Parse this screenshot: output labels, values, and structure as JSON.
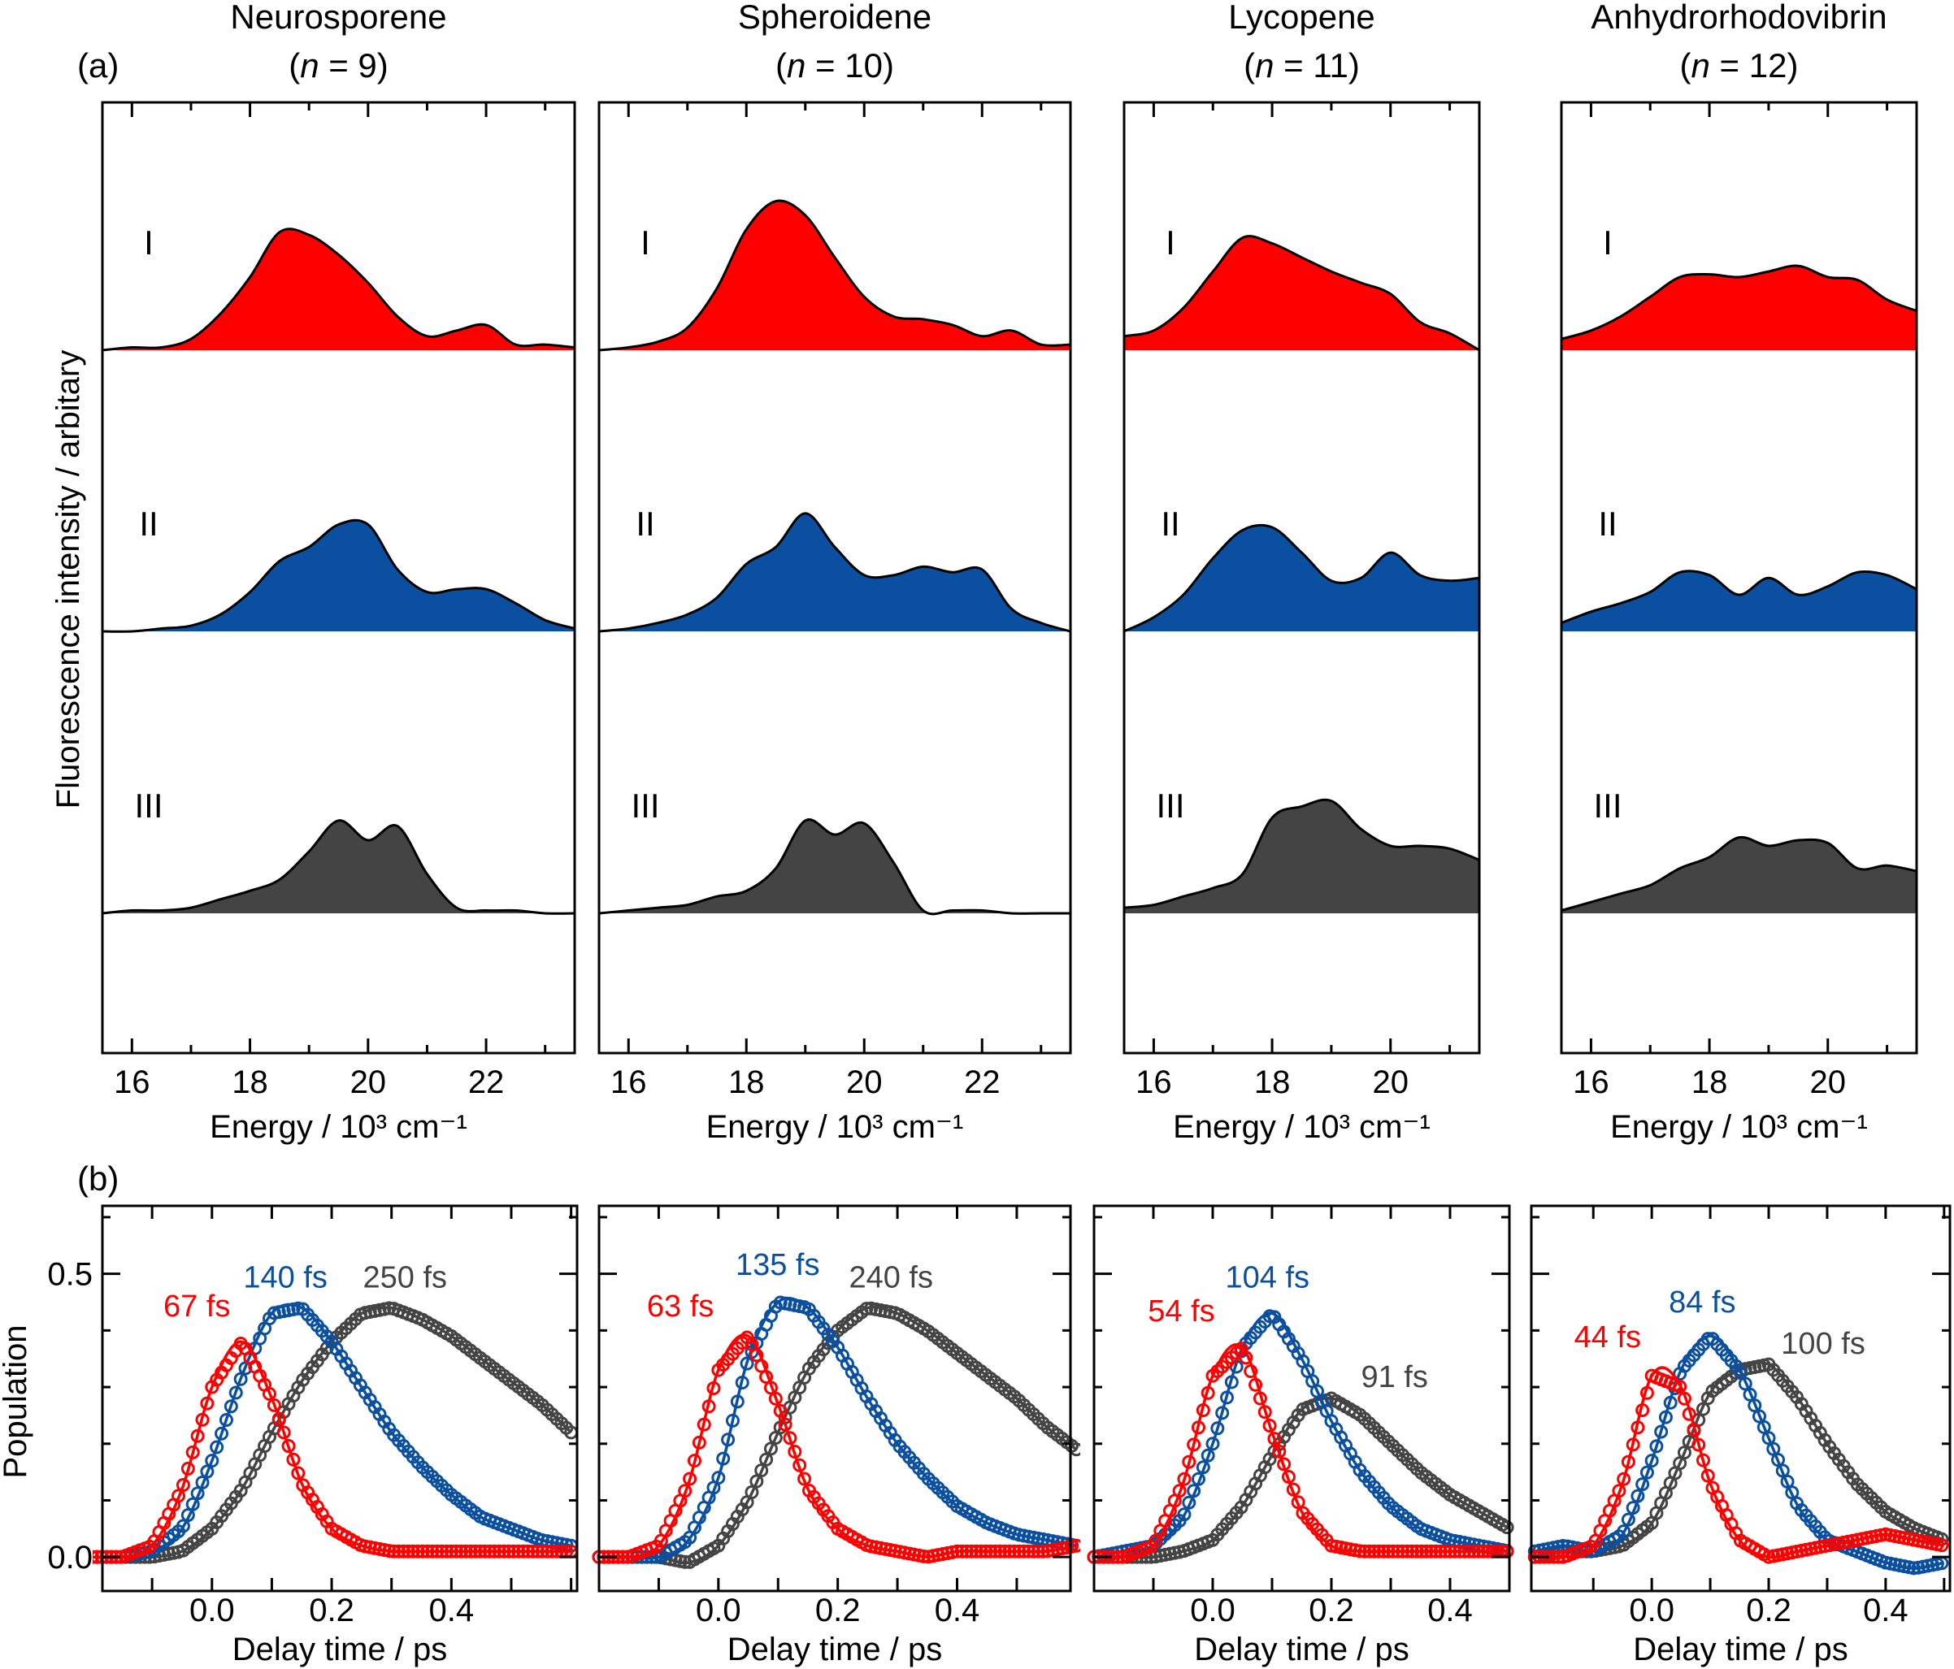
{
  "figure": {
    "panel_a_label": "(a)",
    "panel_b_label": "(b)"
  },
  "colors": {
    "I": "#ff0000",
    "II": "#0b4fa0",
    "III": "#444444",
    "axis": "#000000"
  },
  "chart_data": {
    "spectra": {
      "type": "area",
      "ylabel": "Fluorescence intensity / arbitary",
      "xlabel": "Energy / 10³ cm⁻¹",
      "panels": [
        {
          "title": "Neurosporene",
          "n_open": "(",
          "n_symbol": "n",
          "n_rest": " = 9)",
          "xlim": [
            15.5,
            23.5
          ],
          "xticks": [
            "16",
            "18",
            "20",
            "22"
          ],
          "energy": [
            15.5,
            16,
            16.5,
            17,
            17.5,
            18,
            18.5,
            19,
            19.5,
            20,
            20.5,
            21,
            21.5,
            22,
            22.5,
            23,
            23.5
          ],
          "series": [
            {
              "name": "I",
              "values": [
                0,
                0.01,
                0.01,
                0.04,
                0.13,
                0.26,
                0.42,
                0.41,
                0.34,
                0.24,
                0.12,
                0.05,
                0.07,
                0.09,
                0.02,
                0.02,
                0.01
              ]
            },
            {
              "name": "II",
              "values": [
                0,
                0,
                0.01,
                0.02,
                0.06,
                0.14,
                0.25,
                0.3,
                0.38,
                0.38,
                0.22,
                0.14,
                0.15,
                0.15,
                0.1,
                0.04,
                0.01
              ]
            },
            {
              "name": "III",
              "values": [
                0,
                0.01,
                0.01,
                0.02,
                0.05,
                0.08,
                0.12,
                0.22,
                0.33,
                0.26,
                0.31,
                0.14,
                0.02,
                0.01,
                0.01,
                0,
                0
              ]
            }
          ]
        },
        {
          "title": "Spheroidene",
          "n_open": "(",
          "n_symbol": "n",
          "n_rest": " = 10)",
          "xlim": [
            15.5,
            23.5
          ],
          "xticks": [
            "16",
            "18",
            "20",
            "22"
          ],
          "energy": [
            15.5,
            16,
            16.5,
            17,
            17.5,
            18,
            18.5,
            19,
            19.5,
            20,
            20.5,
            21,
            21.5,
            22,
            22.5,
            23,
            23.5
          ],
          "series": [
            {
              "name": "I",
              "values": [
                0,
                0.01,
                0.03,
                0.08,
                0.22,
                0.43,
                0.53,
                0.48,
                0.33,
                0.19,
                0.12,
                0.11,
                0.09,
                0.05,
                0.07,
                0.02,
                0.02
              ]
            },
            {
              "name": "II",
              "values": [
                0,
                0.01,
                0.03,
                0.06,
                0.12,
                0.24,
                0.3,
                0.42,
                0.3,
                0.2,
                0.2,
                0.23,
                0.21,
                0.22,
                0.08,
                0.03,
                0
              ]
            },
            {
              "name": "III",
              "values": [
                0,
                0.01,
                0.02,
                0.03,
                0.06,
                0.08,
                0.16,
                0.33,
                0.28,
                0.32,
                0.18,
                0.01,
                0.01,
                0.01,
                0,
                0,
                0
              ]
            }
          ]
        },
        {
          "title": "Lycopene",
          "n_open": "(",
          "n_symbol": "n",
          "n_rest": " = 11)",
          "xlim": [
            15.5,
            21.5
          ],
          "xticks": [
            "16",
            "18",
            "20"
          ],
          "energy": [
            15.5,
            16,
            16.5,
            17,
            17.5,
            18,
            18.5,
            19,
            19.5,
            20,
            20.5,
            21,
            21.5
          ],
          "series": [
            {
              "name": "I",
              "values": [
                0.05,
                0.07,
                0.15,
                0.28,
                0.4,
                0.38,
                0.33,
                0.28,
                0.24,
                0.2,
                0.1,
                0.06,
                0
              ]
            },
            {
              "name": "II",
              "values": [
                0,
                0.05,
                0.13,
                0.26,
                0.36,
                0.37,
                0.28,
                0.18,
                0.19,
                0.28,
                0.2,
                0.18,
                0.19
              ]
            },
            {
              "name": "III",
              "values": [
                0.02,
                0.03,
                0.06,
                0.09,
                0.14,
                0.34,
                0.38,
                0.4,
                0.3,
                0.24,
                0.24,
                0.23,
                0.19
              ]
            }
          ]
        },
        {
          "title": "Anhydrorhodovibrin",
          "n_open": "(",
          "n_symbol": "n",
          "n_rest": " = 12)",
          "xlim": [
            15.5,
            21.5
          ],
          "xticks": [
            "16",
            "18",
            "20"
          ],
          "energy": [
            15.5,
            16,
            16.5,
            17,
            17.5,
            18,
            18.5,
            19,
            19.5,
            20,
            20.5,
            21,
            21.5
          ],
          "series": [
            {
              "name": "I",
              "values": [
                0.04,
                0.07,
                0.12,
                0.19,
                0.26,
                0.27,
                0.26,
                0.28,
                0.3,
                0.26,
                0.25,
                0.18,
                0.14
              ]
            },
            {
              "name": "II",
              "values": [
                0.03,
                0.07,
                0.1,
                0.14,
                0.21,
                0.2,
                0.13,
                0.19,
                0.13,
                0.16,
                0.21,
                0.2,
                0.15
              ]
            },
            {
              "name": "III",
              "values": [
                0.01,
                0.04,
                0.07,
                0.1,
                0.16,
                0.2,
                0.27,
                0.24,
                0.26,
                0.25,
                0.16,
                0.17,
                0.15
              ]
            }
          ]
        }
      ]
    },
    "kinetics": {
      "type": "line",
      "ylabel": "Population",
      "xlabel": "Delay time / ps",
      "ylim": [
        -0.06,
        0.62
      ],
      "yticks": [
        "0.0",
        "0.5"
      ],
      "panels": [
        {
          "xlim": [
            -0.183,
            0.61
          ],
          "xticks": [
            "0.0",
            "0.2",
            "0.4"
          ],
          "time": [
            -0.2,
            -0.15,
            -0.1,
            -0.05,
            0,
            0.05,
            0.1,
            0.15,
            0.2,
            0.25,
            0.3,
            0.35,
            0.4,
            0.45,
            0.5,
            0.55,
            0.6
          ],
          "series": [
            {
              "name": "I",
              "lifetime": "67 fs",
              "values": [
                0,
                0,
                0.02,
                0.12,
                0.3,
                0.38,
                0.28,
                0.13,
                0.05,
                0.02,
                0.01,
                0.01,
                0.01,
                0.01,
                0.01,
                0.01,
                0.01
              ]
            },
            {
              "name": "II",
              "lifetime": "140 fs",
              "values": [
                0,
                0,
                0.01,
                0.05,
                0.17,
                0.32,
                0.43,
                0.44,
                0.38,
                0.3,
                0.22,
                0.16,
                0.11,
                0.07,
                0.05,
                0.03,
                0.02
              ]
            },
            {
              "name": "III",
              "lifetime": "250 fs",
              "values": [
                0,
                0,
                0,
                0.01,
                0.05,
                0.12,
                0.22,
                0.31,
                0.38,
                0.43,
                0.44,
                0.42,
                0.39,
                0.35,
                0.31,
                0.27,
                0.22
              ]
            }
          ]
        },
        {
          "xlim": [
            -0.2,
            0.59
          ],
          "xticks": [
            "0.0",
            "0.2",
            "0.4"
          ],
          "time": [
            -0.2,
            -0.15,
            -0.1,
            -0.05,
            0,
            0.05,
            0.1,
            0.15,
            0.2,
            0.25,
            0.3,
            0.35,
            0.4,
            0.45,
            0.5,
            0.55,
            0.6
          ],
          "series": [
            {
              "name": "I",
              "lifetime": "63 fs",
              "values": [
                0,
                0,
                0.02,
                0.13,
                0.33,
                0.39,
                0.27,
                0.12,
                0.05,
                0.02,
                0.01,
                0,
                0.01,
                0.01,
                0.01,
                0.01,
                0.02
              ]
            },
            {
              "name": "II",
              "lifetime": "135 fs",
              "values": [
                0,
                0,
                0,
                0.03,
                0.14,
                0.35,
                0.45,
                0.44,
                0.37,
                0.28,
                0.2,
                0.14,
                0.09,
                0.06,
                0.04,
                0.03,
                0.02
              ]
            },
            {
              "name": "III",
              "lifetime": "240 fs",
              "values": [
                0,
                0,
                0,
                -0.01,
                0.02,
                0.1,
                0.22,
                0.33,
                0.4,
                0.44,
                0.43,
                0.4,
                0.36,
                0.32,
                0.28,
                0.23,
                0.19
              ]
            }
          ]
        },
        {
          "xlim": [
            -0.2,
            0.5
          ],
          "xticks": [
            "0.0",
            "0.2",
            "0.4"
          ],
          "time": [
            -0.2,
            -0.15,
            -0.1,
            -0.05,
            0,
            0.05,
            0.1,
            0.15,
            0.2,
            0.25,
            0.3,
            0.35,
            0.4,
            0.45,
            0.5
          ],
          "series": [
            {
              "name": "I",
              "lifetime": "54 fs",
              "values": [
                0,
                0,
                0.02,
                0.13,
                0.32,
                0.37,
                0.22,
                0.08,
                0.02,
                0.01,
                0.01,
                0.01,
                0.01,
                0.01,
                0.01
              ]
            },
            {
              "name": "II",
              "lifetime": "104 fs",
              "values": [
                0,
                0.01,
                0.02,
                0.07,
                0.2,
                0.37,
                0.43,
                0.35,
                0.24,
                0.15,
                0.09,
                0.05,
                0.03,
                0.02,
                0.01
              ]
            },
            {
              "name": "III",
              "lifetime": "91 fs",
              "values": [
                0,
                0,
                0,
                0.01,
                0.03,
                0.09,
                0.18,
                0.26,
                0.28,
                0.25,
                0.2,
                0.15,
                0.11,
                0.08,
                0.05
              ]
            }
          ]
        },
        {
          "xlim": [
            -0.206,
            0.51
          ],
          "xticks": [
            "0.0",
            "0.2",
            "0.4"
          ],
          "time": [
            -0.2,
            -0.15,
            -0.1,
            -0.05,
            0,
            0.05,
            0.1,
            0.15,
            0.2,
            0.25,
            0.3,
            0.35,
            0.4,
            0.45,
            0.5
          ],
          "series": [
            {
              "name": "I",
              "lifetime": "44 fs",
              "values": [
                0,
                0,
                0.02,
                0.13,
                0.32,
                0.3,
                0.13,
                0.03,
                0,
                0.01,
                0.02,
                0.03,
                0.04,
                0.03,
                0.02
              ]
            },
            {
              "name": "II",
              "lifetime": "84 fs",
              "values": [
                0.01,
                0.02,
                0.01,
                0.04,
                0.17,
                0.33,
                0.39,
                0.33,
                0.21,
                0.09,
                0.03,
                0.01,
                -0.01,
                -0.02,
                -0.01
              ]
            },
            {
              "name": "III",
              "lifetime": "100 fs",
              "values": [
                0,
                0.01,
                0.01,
                0.02,
                0.06,
                0.17,
                0.29,
                0.33,
                0.34,
                0.28,
                0.2,
                0.13,
                0.08,
                0.05,
                0.03
              ]
            }
          ]
        }
      ]
    }
  }
}
